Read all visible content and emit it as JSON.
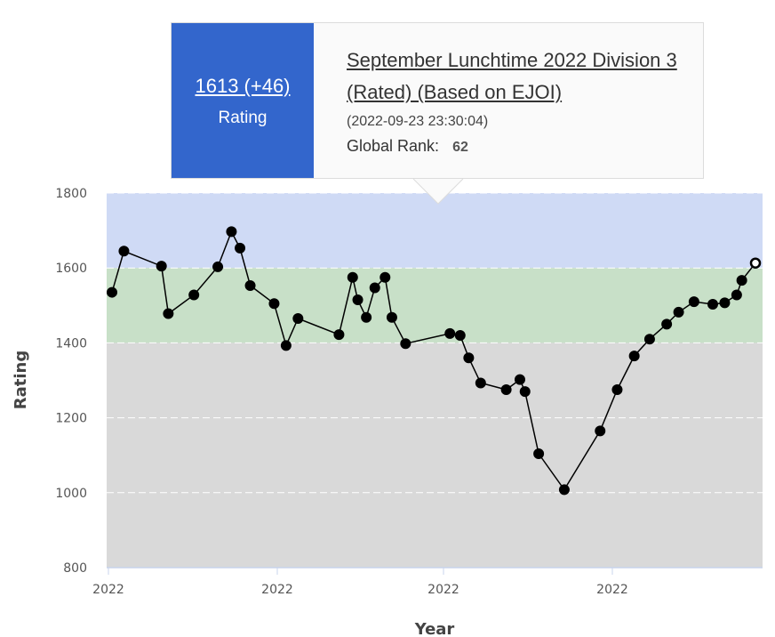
{
  "tooltip": {
    "rating": "1613 (+46)",
    "rating_label": "Rating",
    "contest": "September Lunchtime 2022 Division 3 (Rated) (Based on EJOI)",
    "date": "(2022-09-23 23:30:04)",
    "rank_label": "Global Rank:",
    "rank_value": "62"
  },
  "colors": {
    "band_top": "#cfdaf5",
    "band_middle": "#c8e0c8",
    "band_bottom": "#d9d9d9",
    "line": "#000000",
    "tooltip_accent": "#3366cc"
  },
  "chart_data": {
    "type": "line",
    "xlabel": "Year",
    "ylabel": "Rating",
    "ylim": [
      800,
      1800
    ],
    "yticks": [
      800,
      1000,
      1200,
      1400,
      1600,
      1800
    ],
    "xticks": [
      "2022",
      "2022",
      "2022",
      "2022"
    ],
    "bands": [
      {
        "from": 1600,
        "to": 1800
      },
      {
        "from": 1400,
        "to": 1600
      },
      {
        "from": 800,
        "to": 1400
      }
    ],
    "grid": true,
    "legend": "none",
    "series": [
      {
        "x": [
          0.0,
          0.7,
          2.9,
          3.3,
          4.8,
          6.2,
          7.0,
          7.5,
          8.1,
          9.5,
          10.2,
          10.9,
          13.3,
          14.1,
          14.4,
          14.9,
          15.4,
          16.0,
          16.4,
          17.2,
          19.8,
          20.4,
          20.9,
          21.6,
          23.1,
          23.9,
          24.2,
          25.0,
          26.5,
          28.6,
          29.6,
          30.6,
          31.5,
          32.5,
          33.2,
          34.1,
          35.2,
          35.9,
          36.6,
          36.9,
          37.7
        ],
        "values": [
          1535,
          1645,
          1605,
          1478,
          1528,
          1603,
          1697,
          1653,
          1553,
          1505,
          1393,
          1465,
          1422,
          1575,
          1515,
          1468,
          1547,
          1575,
          1468,
          1398,
          1425,
          1420,
          1360,
          1293,
          1275,
          1302,
          1270,
          1104,
          1008,
          1165,
          1275,
          1365,
          1410,
          1450,
          1482,
          1510,
          1503,
          1507,
          1528,
          1567,
          1613
        ]
      }
    ],
    "highlight_index": 40
  }
}
